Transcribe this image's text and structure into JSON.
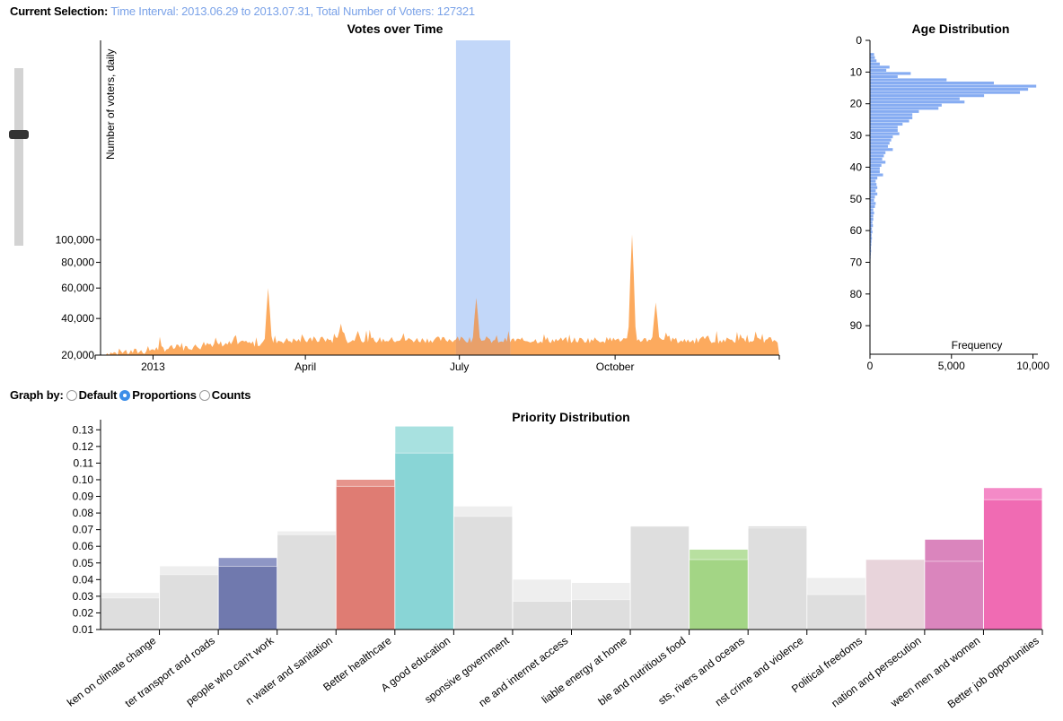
{
  "selection": {
    "label": "Current Selection:",
    "value": "Time Interval: 2013.06.29 to 2013.07.31, Total Number of Voters: 127321"
  },
  "graph_by": {
    "label": "Graph by:",
    "options": [
      "Default",
      "Proportions",
      "Counts"
    ],
    "selected": "Proportions"
  },
  "colors": {
    "area": "#fcaa5e",
    "brush": "#b3cdf8",
    "age": "#86acf2",
    "grey": "#dedede"
  },
  "chart_data": [
    {
      "type": "area",
      "title": "Votes over Time",
      "ylabel": "Number of voters, daily",
      "y_ticks": [
        "20,000",
        "40,000",
        "60,000",
        "80,000",
        "100,000"
      ],
      "y_tick_values": [
        20000,
        40000,
        60000,
        80000,
        100000
      ],
      "x_ticks": [
        "2013",
        "April",
        "July",
        "October"
      ],
      "x_range": [
        "2012-12-01",
        "2014-01-06"
      ],
      "y_scale": "sqrt",
      "brush": [
        "2013-06-29",
        "2013-07-31"
      ],
      "peaks": [
        {
          "x": "2013-03-10",
          "y": 60000
        },
        {
          "x": "2013-04-11",
          "y": 30000
        },
        {
          "x": "2013-04-22",
          "y": 37000
        },
        {
          "x": "2013-05-02",
          "y": 33000
        },
        {
          "x": "2013-06-16",
          "y": 15000
        },
        {
          "x": "2013-07-11",
          "y": 53000
        },
        {
          "x": "2013-07-19",
          "y": 24000
        },
        {
          "x": "2013-08-14",
          "y": 21000
        },
        {
          "x": "2013-09-08",
          "y": 23000
        },
        {
          "x": "2013-10-11",
          "y": 105000
        },
        {
          "x": "2013-10-25",
          "y": 50000
        },
        {
          "x": "2013-11-16",
          "y": 18000
        },
        {
          "x": "2013-12-07",
          "y": 29000
        }
      ]
    },
    {
      "type": "bar",
      "title": "Age Distribution",
      "xlabel": "Frequency",
      "orientation": "horizontal",
      "x_ticks": [
        "0",
        "5,000",
        "10,000"
      ],
      "y_ticks": [
        "0",
        "10",
        "20",
        "30",
        "40",
        "50",
        "60",
        "70",
        "80",
        "90"
      ],
      "ylim": [
        0,
        99
      ],
      "xlim": [
        0,
        10300
      ],
      "ages": [
        4,
        5,
        6,
        7,
        8,
        9,
        10,
        11,
        12,
        13,
        14,
        15,
        16,
        17,
        18,
        19,
        20,
        21,
        22,
        23,
        24,
        25,
        26,
        27,
        28,
        29,
        30,
        31,
        32,
        33,
        34,
        35,
        36,
        37,
        38,
        39,
        40,
        41,
        42,
        43,
        44,
        45,
        46,
        47,
        48,
        49,
        50,
        51,
        52,
        53,
        54,
        55,
        56,
        57,
        58,
        59,
        60,
        61,
        62,
        63,
        64,
        65,
        66,
        67,
        68,
        69,
        70,
        71,
        72,
        73,
        74,
        75
      ],
      "values": [
        250,
        300,
        400,
        600,
        1200,
        1000,
        2500,
        1700,
        4700,
        7600,
        10200,
        9700,
        9200,
        7000,
        5500,
        5800,
        4400,
        4200,
        3000,
        2600,
        2600,
        2400,
        2000,
        1700,
        1700,
        1800,
        1400,
        1300,
        1200,
        1100,
        1400,
        950,
        850,
        750,
        950,
        700,
        600,
        600,
        800,
        450,
        350,
        400,
        450,
        350,
        450,
        300,
        250,
        350,
        300,
        200,
        250,
        200,
        200,
        150,
        180,
        120,
        150,
        100,
        120,
        90,
        80,
        60,
        70,
        50,
        40,
        30,
        30,
        20,
        20,
        15,
        10,
        10
      ]
    },
    {
      "type": "bar",
      "title": "Priority Distribution",
      "ylim": [
        0.01,
        0.135
      ],
      "y_ticks": [
        "0.01",
        "0.02",
        "0.03",
        "0.04",
        "0.05",
        "0.06",
        "0.07",
        "0.08",
        "0.09",
        "0.10",
        "0.11",
        "0.12",
        "0.13"
      ],
      "y_tick_values": [
        0.01,
        0.02,
        0.03,
        0.04,
        0.05,
        0.06,
        0.07,
        0.08,
        0.09,
        0.1,
        0.11,
        0.12,
        0.13
      ],
      "categories": [
        "Action taken on climate change",
        "Better transport and roads",
        "Support for people who can't work",
        "Access to clean water and sanitation",
        "Better healthcare",
        "A good education",
        "An honest and responsive government",
        "Phone and internet access",
        "Reliable energy at home",
        "Affordable and nutritious food",
        "Protecting forests, rivers and oceans",
        "Protection against crime and violence",
        "Political freedoms",
        "Freedom from discrimination and persecution",
        "Equality between men and women",
        "Better job opportunities"
      ],
      "visible_labels": [
        "ken on climate change",
        "ter transport and roads",
        "people who can't work",
        "n water and sanitation",
        "Better healthcare",
        "A good education",
        "sponsive government",
        "ne and internet access",
        "liable energy at home",
        "ble and nutritious food",
        "sts, rivers and oceans",
        "nst crime and violence",
        "Political freedoms",
        "nation and persecution",
        "ween men and women",
        "Better job opportunities"
      ],
      "series": [
        {
          "values": [
            0.029,
            0.043,
            0.048,
            0.067,
            0.096,
            0.116,
            0.078,
            0.027,
            0.028,
            0.072,
            0.052,
            0.071,
            0.031,
            0.052,
            0.051,
            0.088
          ]
        },
        {
          "values": [
            0.032,
            0.048,
            0.053,
            0.069,
            0.1,
            0.132,
            0.084,
            0.04,
            0.038,
            0.072,
            0.058,
            0.072,
            0.041,
            0.052,
            0.064,
            0.095
          ]
        }
      ],
      "bar_colors": [
        "#dedede",
        "#dedede",
        "#7079ae",
        "#dedede",
        "#df7c73",
        "#89d5d6",
        "#dedede",
        "#dedede",
        "#dedede",
        "#dedede",
        "#a3d585",
        "#dedede",
        "#dedede",
        "#e8d4db",
        "#da85bd",
        "#f06bb3"
      ],
      "top_colors": [
        "#eeeeee",
        "#eeeeee",
        "#8e96c5",
        "#eeeeee",
        "#e6948c",
        "#a8e1e0",
        "#eeeeee",
        "#eeeeee",
        "#eeeeee",
        "#dedede",
        "#b8e0a0",
        "#dedede",
        "#eeeeee",
        "#e8d4db",
        "#da85bd",
        "#f48ac7"
      ]
    }
  ]
}
